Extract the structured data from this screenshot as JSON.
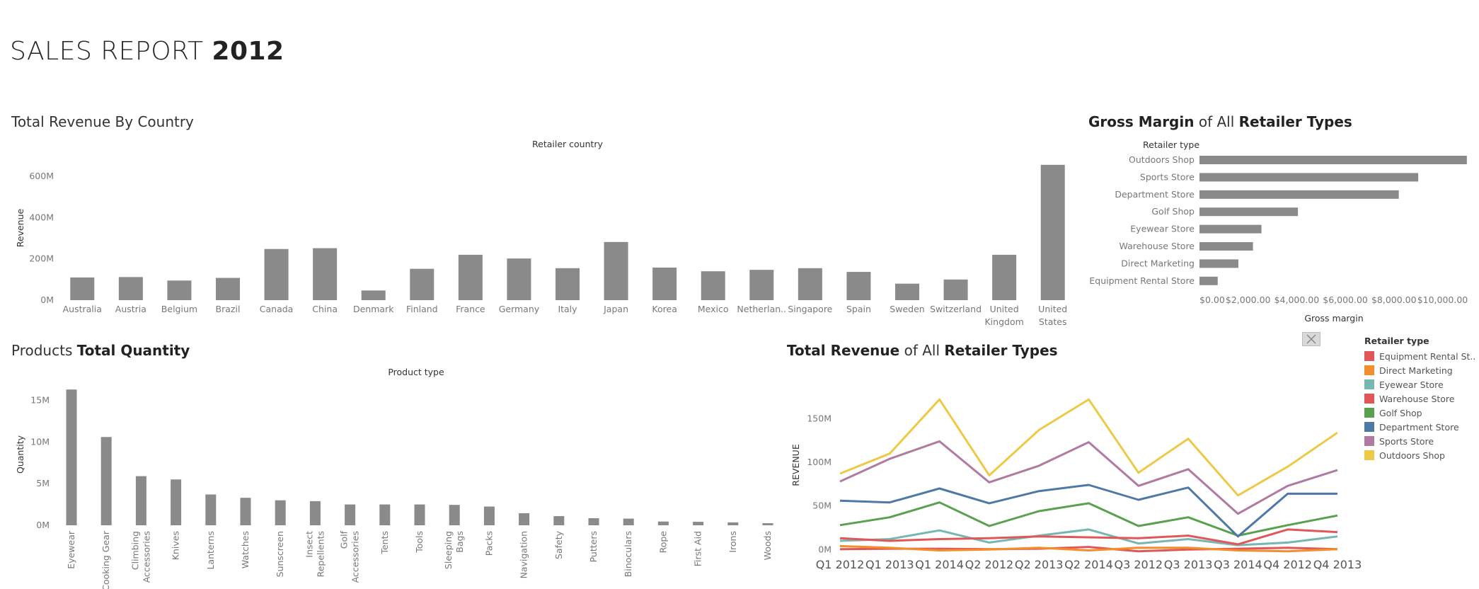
{
  "page_title": {
    "light": "SALES REPORT",
    "bold": "2012"
  },
  "colors": {
    "bar": "#8a8a8a",
    "axis_text": "#777777"
  },
  "close_icon": "close-icon",
  "chart_data": [
    {
      "id": "revenue_by_country",
      "type": "bar",
      "title": "Total Revenue By Country",
      "header": "Retailer country",
      "ylabel": "Revenue",
      "ylim": [
        0,
        700
      ],
      "yticks": [
        0,
        200,
        400,
        600
      ],
      "ytick_labels": [
        "0M",
        "200M",
        "400M",
        "600M"
      ],
      "categories": [
        "Australia",
        "Austria",
        "Belgium",
        "Brazil",
        "Canada",
        "China",
        "Denmark",
        "Finland",
        "France",
        "Germany",
        "Italy",
        "Japan",
        "Korea",
        "Mexico",
        "Netherlan..",
        "Singapore",
        "Spain",
        "Sweden",
        "Switzerland",
        "United Kingdom",
        "United States"
      ],
      "category_lines": [
        [
          "Australia"
        ],
        [
          "Austria"
        ],
        [
          "Belgium"
        ],
        [
          "Brazil"
        ],
        [
          "Canada"
        ],
        [
          "China"
        ],
        [
          "Denmark"
        ],
        [
          "Finland"
        ],
        [
          "France"
        ],
        [
          "Germany"
        ],
        [
          "Italy"
        ],
        [
          "Japan"
        ],
        [
          "Korea"
        ],
        [
          "Mexico"
        ],
        [
          "Netherlan.."
        ],
        [
          "Singapore"
        ],
        [
          "Spain"
        ],
        [
          "Sweden"
        ],
        [
          "Switzerland"
        ],
        [
          "United",
          "Kingdom"
        ],
        [
          "United",
          "States"
        ]
      ],
      "values": [
        110,
        112,
        95,
        108,
        248,
        252,
        47,
        152,
        220,
        202,
        155,
        282,
        158,
        140,
        147,
        155,
        137,
        80,
        100,
        220,
        656
      ]
    },
    {
      "id": "gross_margin",
      "type": "bar",
      "orientation": "horizontal",
      "title_parts": [
        [
          "Gross Margin",
          true
        ],
        [
          " of All ",
          false
        ],
        [
          "Retailer Types",
          true
        ]
      ],
      "header": "Retailer type",
      "xlabel": "Gross margin",
      "xlim": [
        0,
        11500
      ],
      "xticks": [
        0,
        2000,
        4000,
        6000,
        8000,
        10000
      ],
      "xtick_labels": [
        "$0.00",
        "$2,000.00",
        "$4,000.00",
        "$6,000.00",
        "$8,000.00",
        "$10,000.00"
      ],
      "categories": [
        "Outdoors Shop",
        "Sports Store",
        "Department Store",
        "Golf Shop",
        "Eyewear Store",
        "Warehouse Store",
        "Direct Marketing",
        "Equipment Rental Store"
      ],
      "values": [
        11000,
        9000,
        8200,
        4050,
        2550,
        2200,
        1600,
        750
      ]
    },
    {
      "id": "products_quantity",
      "type": "bar",
      "title_parts": [
        [
          "Products ",
          false
        ],
        [
          "Total Quantity",
          true
        ]
      ],
      "header": "Product type",
      "ylabel": "Quantity",
      "ylim": [
        0,
        17
      ],
      "yticks": [
        0,
        5,
        10,
        15
      ],
      "ytick_labels": [
        "0M",
        "5M",
        "10M",
        "15M"
      ],
      "categories": [
        "Eyewear",
        "Cooking Gear",
        "Climbing Accessories",
        "Knives",
        "Lanterns",
        "Watches",
        "Sunscreen",
        "Insect Repellents",
        "Golf Accessories",
        "Tents",
        "Tools",
        "Sleeping Bags",
        "Packs",
        "Navigation",
        "Safety",
        "Putters",
        "Binoculars",
        "Rope",
        "First Aid",
        "Irons",
        "Woods"
      ],
      "category_lines": [
        [
          "Eyewear"
        ],
        [
          "Cooking Gear"
        ],
        [
          "Climbing",
          "Accessories"
        ],
        [
          "Knives"
        ],
        [
          "Lanterns"
        ],
        [
          "Watches"
        ],
        [
          "Sunscreen"
        ],
        [
          "Insect",
          "Repellents"
        ],
        [
          "Golf",
          "Accessories"
        ],
        [
          "Tents"
        ],
        [
          "Tools"
        ],
        [
          "Sleeping",
          "Bags"
        ],
        [
          "Packs"
        ],
        [
          "Navigation"
        ],
        [
          "Safety"
        ],
        [
          "Putters"
        ],
        [
          "Binoculars"
        ],
        [
          "Rope"
        ],
        [
          "First Aid"
        ],
        [
          "Irons"
        ],
        [
          "Woods"
        ]
      ],
      "values": [
        16.3,
        10.6,
        5.9,
        5.5,
        3.7,
        3.3,
        3.0,
        2.9,
        2.5,
        2.5,
        2.5,
        2.45,
        2.25,
        1.45,
        1.1,
        0.85,
        0.8,
        0.45,
        0.42,
        0.35,
        0.25
      ]
    },
    {
      "id": "revenue_retailer_types",
      "type": "line",
      "title_parts": [
        [
          "Total Revenue",
          true
        ],
        [
          " of All ",
          false
        ],
        [
          "Retailer Types",
          true
        ]
      ],
      "ylabel": "REVENUE",
      "ylim": [
        -3,
        190
      ],
      "yticks": [
        0,
        50,
        100,
        150
      ],
      "ytick_labels": [
        "0M",
        "50M",
        "100M",
        "150M"
      ],
      "categories": [
        "Q1 2012",
        "Q1 2013",
        "Q1 2014",
        "Q2 2012",
        "Q2 2013",
        "Q2 2014",
        "Q3 2012",
        "Q3 2013",
        "Q3 2014",
        "Q4 2012",
        "Q4 2013"
      ],
      "xtick_labels": [
        "Q1 2012",
        "Q1 2013",
        "Q1 2014",
        "Q2 2012",
        "Q2 2013",
        "Q2 2014",
        "Q3 2012",
        "Q3 2013",
        "Q3 2014",
        "Q4 2012",
        "Q4 2013"
      ],
      "legend_title": "Retailer type",
      "legend_position": "right",
      "series": [
        {
          "name": "Equipment Rental St..",
          "color": "#e15759",
          "values": [
            0.5,
            1,
            1,
            0.5,
            1,
            3,
            -2,
            0,
            1,
            2,
            0.5
          ]
        },
        {
          "name": "Direct Marketing",
          "color": "#f28e2b",
          "values": [
            4,
            2,
            -1,
            0,
            2,
            -1,
            2,
            2,
            -1,
            -2,
            0.5
          ]
        },
        {
          "name": "Eyewear Store",
          "color": "#76b7b2",
          "values": [
            10,
            12,
            22,
            8,
            16,
            23,
            7,
            12,
            5,
            8,
            15
          ]
        },
        {
          "name": "Warehouse Store",
          "color": "#e15759",
          "values": [
            13,
            10,
            12,
            13,
            15,
            14,
            13,
            16,
            6,
            23,
            20
          ]
        },
        {
          "name": "Golf Shop",
          "color": "#59a14f",
          "values": [
            28,
            37,
            54,
            27,
            44,
            53,
            27,
            37,
            16,
            28,
            39
          ]
        },
        {
          "name": "Department Store",
          "color": "#4e79a7",
          "values": [
            56,
            54,
            70,
            53,
            67,
            74,
            57,
            71,
            15,
            64,
            64
          ]
        },
        {
          "name": "Sports Store",
          "color": "#b07aa1",
          "values": [
            78,
            104,
            124,
            77,
            96,
            123,
            73,
            92,
            41,
            73,
            91
          ]
        },
        {
          "name": "Outdoors Shop",
          "color": "#edc948",
          "values": [
            87,
            110,
            172,
            85,
            137,
            172,
            88,
            127,
            62,
            95,
            134
          ]
        }
      ]
    }
  ]
}
